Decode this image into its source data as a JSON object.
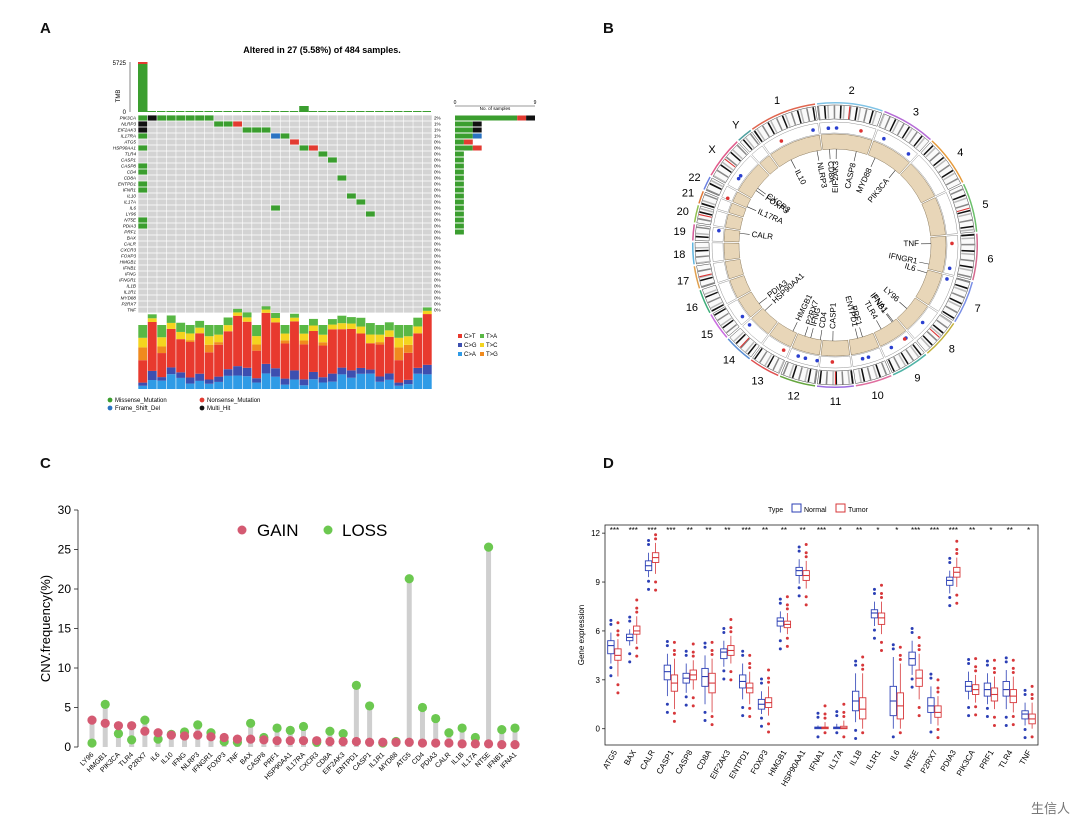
{
  "panels": {
    "a": {
      "label": "A",
      "title": "Altered in 27 (5.58%) of 484 samples."
    },
    "b": {
      "label": "B"
    },
    "c": {
      "label": "C"
    },
    "d": {
      "label": "D"
    }
  },
  "oncoplot": {
    "tmb_label": "TMB",
    "tmb_ticks": [
      "5725",
      "0"
    ],
    "side_axis_title": "No. of samples",
    "side_axis_ticks": [
      "0",
      "9"
    ],
    "genes": [
      "PIK3CA",
      "NLRP3",
      "EIF2AK3",
      "IL17RA",
      "ATG5",
      "HSP90AA1",
      "TLR4",
      "CASP1",
      "CASP8",
      "CD4",
      "CD8A",
      "ENTPD1",
      "IFNR1",
      "IL10",
      "IL17A",
      "IL6",
      "LY96",
      "NT5E",
      "PDIA3",
      "PRF1",
      "BAX",
      "CALR",
      "CXCR3",
      "FOXP3",
      "HMGB1",
      "IFNB1",
      "IFNG",
      "IFNGR1",
      "IL1B",
      "IL1R1",
      "MYD88",
      "P2RX7",
      "TNF"
    ],
    "pcts": [
      "2%",
      "1%",
      "1%",
      "1%",
      "0%",
      "0%",
      "0%",
      "0%",
      "0%",
      "0%",
      "0%",
      "0%",
      "0%",
      "0%",
      "0%",
      "0%",
      "0%",
      "0%",
      "0%",
      "0%",
      "0%",
      "0%",
      "0%",
      "0%",
      "0%",
      "0%",
      "0%",
      "0%",
      "0%",
      "0%",
      "0%",
      "0%",
      "0%"
    ],
    "variant_legend": [
      {
        "name": "Missense_Mutation",
        "color": "#3b9e2f"
      },
      {
        "name": "Nonsense_Mutation",
        "color": "#e23b31"
      },
      {
        "name": "Frame_Shift_Del",
        "color": "#2a73c2"
      },
      {
        "name": "Multi_Hit",
        "color": "#111111"
      }
    ],
    "titv_legend": [
      {
        "name": "C>T",
        "color": "#e8392e"
      },
      {
        "name": "T>A",
        "color": "#59b845"
      },
      {
        "name": "C>G",
        "color": "#3d4fb0"
      },
      {
        "name": "T>C",
        "color": "#f4d41f"
      },
      {
        "name": "C>A",
        "color": "#2f9be6"
      },
      {
        "name": "T>G",
        "color": "#f08a1e"
      }
    ]
  },
  "circos": {
    "chromosomes": [
      "1",
      "2",
      "3",
      "4",
      "5",
      "6",
      "7",
      "8",
      "9",
      "10",
      "11",
      "12",
      "13",
      "14",
      "15",
      "16",
      "17",
      "18",
      "19",
      "20",
      "21",
      "22",
      "X",
      "Y"
    ],
    "genes": [
      "IL10",
      "NLRP3",
      "CD8A",
      "EIF2AK3",
      "CASP8",
      "MYD88",
      "PIK3CA",
      "IL6",
      "TNF",
      "IFNGR1",
      "LY96",
      "IFNA1",
      "IFNB1",
      "TLR4",
      "PRF1",
      "ENTPD1",
      "CASP1",
      "CD4",
      "IFNG",
      "P2RX7",
      "HMGB1",
      "HSP90AA1",
      "PDIA3",
      "CALR",
      "IL17RA",
      "CXCR3",
      "FOXP3"
    ]
  },
  "chart_data": [
    {
      "type": "scatter",
      "subtype": "lollipop",
      "panel": "C",
      "ylabel": "CNV.frequency(%)",
      "ylim": [
        0,
        30
      ],
      "yticks": [
        0,
        5,
        10,
        15,
        20,
        25,
        30
      ],
      "categories": [
        "LY96",
        "HMGB1",
        "PIK3CA",
        "TLR4",
        "P2RX7",
        "IL6",
        "IL10",
        "IFNG",
        "NLRP3",
        "IFNGR1",
        "FOXP3",
        "TNF",
        "BAX",
        "CASP8",
        "PRF1",
        "HSP90AA1",
        "IL17RA",
        "CXCR3",
        "CD8A",
        "EIF2AK3",
        "ENTPD1",
        "CASP1",
        "IL1R1",
        "MYD88",
        "ATG5",
        "CD4",
        "PDIA3",
        "CALR",
        "IL1B",
        "IL17A",
        "NT5E",
        "IFNB1",
        "IFNA1"
      ],
      "series": [
        {
          "name": "GAIN",
          "color": "#d45a72",
          "values": [
            3.4,
            3.0,
            2.7,
            2.7,
            2.0,
            1.8,
            1.5,
            1.4,
            1.5,
            1.3,
            1.2,
            1.0,
            1.0,
            0.9,
            0.8,
            0.8,
            0.8,
            0.8,
            0.7,
            0.7,
            0.7,
            0.6,
            0.6,
            0.6,
            0.6,
            0.5,
            0.5,
            0.5,
            0.4,
            0.4,
            0.4,
            0.3,
            0.3
          ]
        },
        {
          "name": "LOSS",
          "color": "#6cc850",
          "values": [
            0.5,
            5.4,
            1.7,
            0.9,
            3.4,
            1.0,
            1.6,
            1.9,
            2.8,
            1.8,
            0.7,
            0.6,
            3.0,
            1.2,
            2.4,
            2.1,
            2.6,
            0.6,
            2.0,
            1.7,
            7.8,
            5.2,
            0.5,
            0.7,
            21.3,
            5.0,
            3.6,
            1.8,
            2.4,
            1.2,
            25.3,
            2.2,
            2.4
          ]
        }
      ]
    },
    {
      "type": "box",
      "panel": "D",
      "legend_title": "Type",
      "ylabel": "Gene expression",
      "ylim": [
        -1,
        12.5
      ],
      "yticks": [
        0,
        3,
        6,
        9,
        12
      ],
      "categories": [
        "ATG5",
        "BAX",
        "CALR",
        "CASP1",
        "CASP8",
        "CD8A",
        "EIF2AK3",
        "ENTPD1",
        "FOXP3",
        "HMGB1",
        "HSP90AA1",
        "IFNA1",
        "IL17A",
        "IL1B",
        "IL1R1",
        "IL6",
        "NT5E",
        "P2RX7",
        "PDIA3",
        "PIK3CA",
        "PRF1",
        "TLR4",
        "TNF"
      ],
      "significance": [
        "***",
        "***",
        "***",
        "***",
        "**",
        "**",
        "**",
        "***",
        "**",
        "**",
        "**",
        "***",
        "*",
        "**",
        "*",
        "*",
        "***",
        "***",
        "***",
        "**",
        "*",
        "**",
        "*"
      ],
      "series": [
        {
          "name": "Normal",
          "color": "#2b3fb5",
          "stats": [
            [
              4.0,
              4.6,
              5.1,
              5.4,
              5.9
            ],
            [
              5.1,
              5.4,
              5.6,
              5.8,
              6.1
            ],
            [
              9.3,
              9.7,
              10.0,
              10.3,
              10.8
            ],
            [
              2.0,
              3.0,
              3.5,
              3.9,
              4.6
            ],
            [
              2.2,
              2.8,
              3.1,
              3.4,
              4.0
            ],
            [
              1.5,
              2.6,
              3.2,
              3.7,
              4.5
            ],
            [
              3.8,
              4.3,
              4.7,
              4.9,
              5.4
            ],
            [
              1.8,
              2.5,
              2.9,
              3.3,
              4.0
            ],
            [
              0.9,
              1.2,
              1.5,
              1.8,
              2.3
            ],
            [
              5.9,
              6.3,
              6.6,
              6.8,
              7.2
            ],
            [
              8.9,
              9.4,
              9.7,
              9.9,
              10.4
            ],
            [
              0.0,
              0.0,
              0.05,
              0.1,
              0.2
            ],
            [
              0.0,
              0.0,
              0.05,
              0.1,
              0.3
            ],
            [
              0.4,
              1.1,
              1.7,
              2.3,
              3.4
            ],
            [
              6.3,
              6.8,
              7.1,
              7.3,
              7.8
            ],
            [
              0.0,
              0.8,
              1.7,
              2.6,
              4.4
            ],
            [
              3.3,
              3.9,
              4.3,
              4.7,
              5.4
            ],
            [
              0.3,
              1.0,
              1.4,
              1.9,
              2.6
            ],
            [
              8.3,
              8.8,
              9.1,
              9.3,
              9.7
            ],
            [
              1.8,
              2.3,
              2.6,
              2.9,
              3.5
            ],
            [
              1.5,
              2.0,
              2.4,
              2.8,
              3.4
            ],
            [
              1.2,
              2.0,
              2.4,
              2.9,
              3.6
            ],
            [
              0.2,
              0.6,
              0.9,
              1.1,
              1.6
            ]
          ]
        },
        {
          "name": "Tumor",
          "color": "#d7373a",
          "stats": [
            [
              3.2,
              4.2,
              4.5,
              4.9,
              5.5
            ],
            [
              5.2,
              5.8,
              6.0,
              6.3,
              6.9
            ],
            [
              9.5,
              10.2,
              10.5,
              10.8,
              11.4
            ],
            [
              1.2,
              2.3,
              2.8,
              3.3,
              4.3
            ],
            [
              2.4,
              3.0,
              3.3,
              3.6,
              4.2
            ],
            [
              1.0,
              2.2,
              2.8,
              3.4,
              4.3
            ],
            [
              4.0,
              4.5,
              4.8,
              5.1,
              5.7
            ],
            [
              1.5,
              2.2,
              2.5,
              2.8,
              3.5
            ],
            [
              0.8,
              1.3,
              1.6,
              1.9,
              2.6
            ],
            [
              5.8,
              6.2,
              6.4,
              6.6,
              7.1
            ],
            [
              8.6,
              9.1,
              9.4,
              9.7,
              10.3
            ],
            [
              0.0,
              0.0,
              0.05,
              0.1,
              0.4
            ],
            [
              0.0,
              0.0,
              0.05,
              0.15,
              0.5
            ],
            [
              0.0,
              0.6,
              1.2,
              1.9,
              3.4
            ],
            [
              5.8,
              6.4,
              6.8,
              7.1,
              7.8
            ],
            [
              0.0,
              0.6,
              1.4,
              2.2,
              4.0
            ],
            [
              1.8,
              2.6,
              3.1,
              3.6,
              4.6
            ],
            [
              0.2,
              0.7,
              1.0,
              1.4,
              2.0
            ],
            [
              8.7,
              9.3,
              9.6,
              9.9,
              10.5
            ],
            [
              1.6,
              2.1,
              2.4,
              2.7,
              3.3
            ],
            [
              1.2,
              1.7,
              2.1,
              2.5,
              3.2
            ],
            [
              1.0,
              1.6,
              2.0,
              2.4,
              3.2
            ],
            [
              0.0,
              0.3,
              0.6,
              0.9,
              1.6
            ]
          ]
        }
      ]
    }
  ],
  "watermark": "生信人"
}
